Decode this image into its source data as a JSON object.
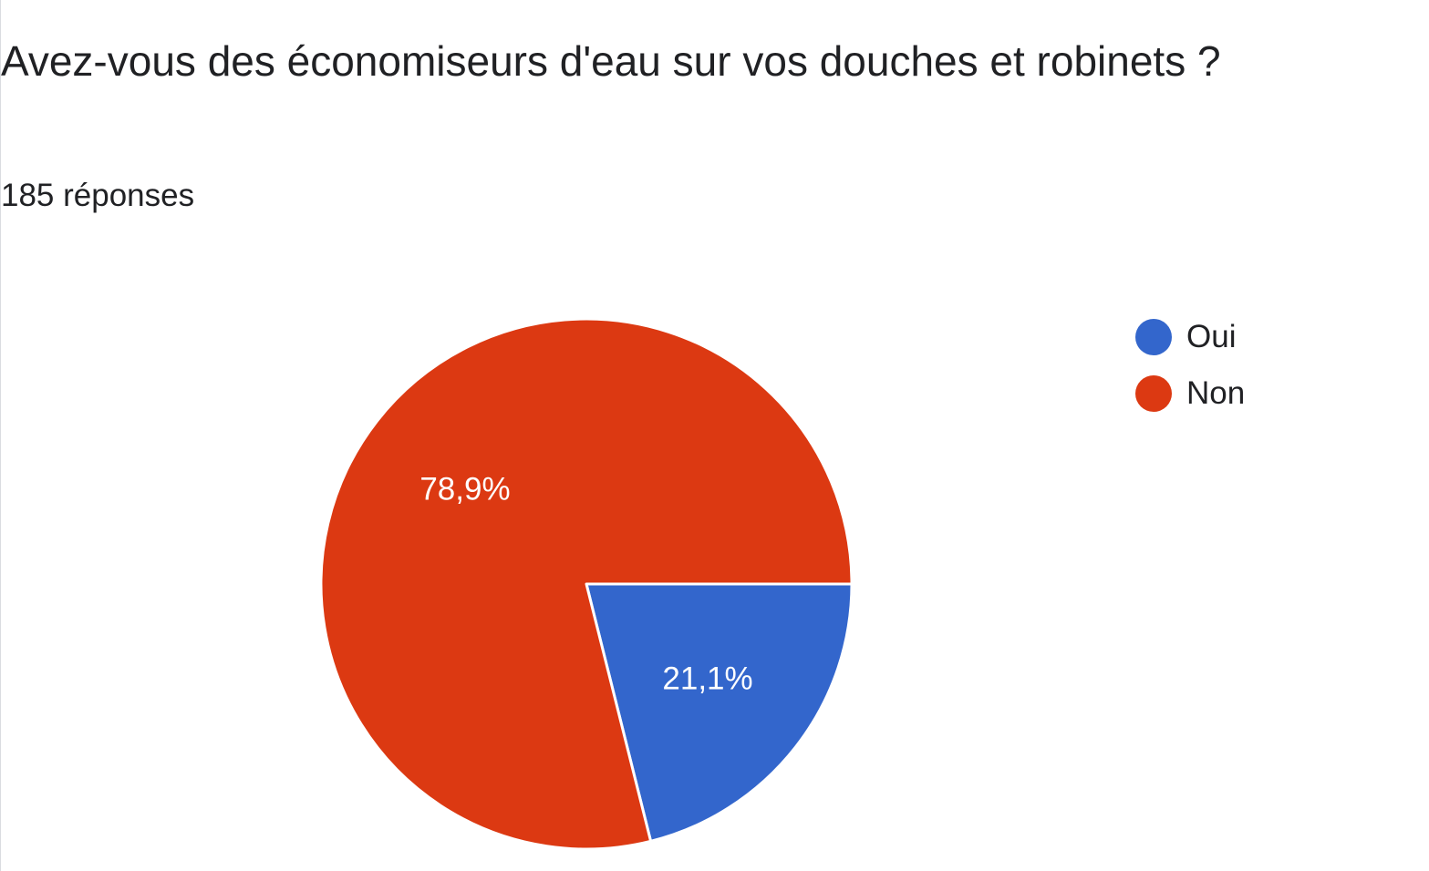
{
  "question": {
    "title": "Avez-vous des économiseurs d'eau sur vos douches et robinets ?",
    "response_count": "185 réponses"
  },
  "chart_data": {
    "type": "pie",
    "title": "Avez-vous des économiseurs d'eau sur vos douches et robinets ?",
    "slices": [
      {
        "label": "Oui",
        "value": 21.1,
        "display": "21,1%",
        "color": "#3366cc"
      },
      {
        "label": "Non",
        "value": 78.9,
        "display": "78,9%",
        "color": "#dc3912"
      }
    ],
    "legend_position": "top-right",
    "start_angle": "3 o'clock, clockwise"
  }
}
